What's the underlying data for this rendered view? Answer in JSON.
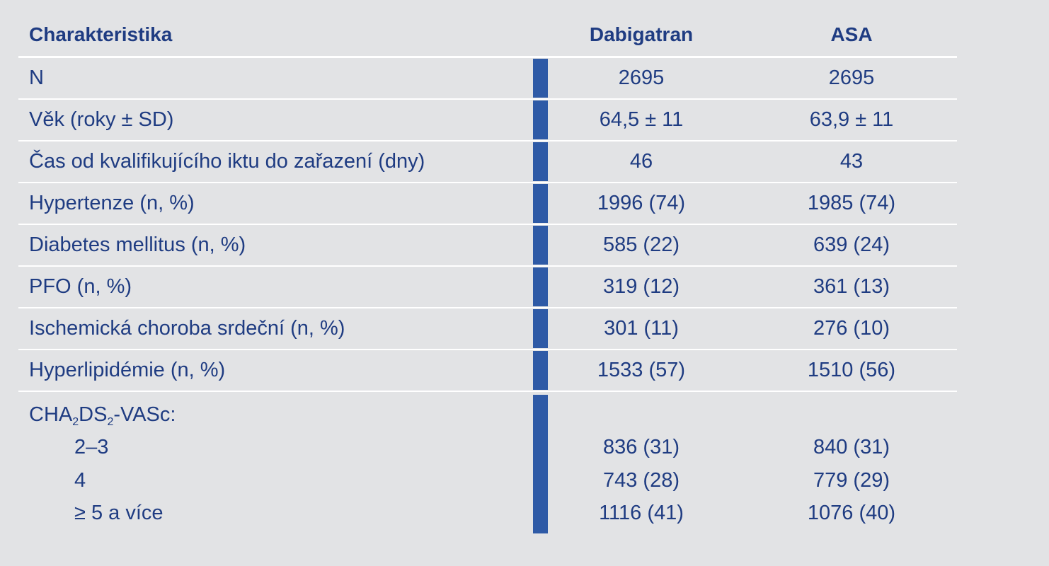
{
  "table": {
    "headers": {
      "label": "Charakteristika",
      "dabigatran": "Dabigatran",
      "asa": "ASA"
    },
    "rows": [
      {
        "label": "N",
        "dabigatran": "2695",
        "asa": "2695"
      },
      {
        "label": "Věk (roky ± SD)",
        "dabigatran": "64,5 ± 11",
        "asa": "63,9 ± 11"
      },
      {
        "label": "Čas od kvalifikujícího iktu do zařazení (dny)",
        "dabigatran": "46",
        "asa": "43"
      },
      {
        "label": "Hypertenze (n, %)",
        "dabigatran": "1996 (74)",
        "asa": "1985 (74)"
      },
      {
        "label": "Diabetes mellitus (n, %)",
        "dabigatran": "585 (22)",
        "asa": "639 (24)"
      },
      {
        "label": "PFO (n, %)",
        "dabigatran": "319 (12)",
        "asa": "361 (13)"
      },
      {
        "label": "Ischemická choroba srdeční (n, %)",
        "dabigatran": "301 (11)",
        "asa": "276 (10)"
      },
      {
        "label": "Hyperlipidémie (n, %)",
        "dabigatran": "1533 (57)",
        "asa": "1510 (56)"
      }
    ],
    "score": {
      "label_part1": "CHA",
      "sub1": "2",
      "label_part2": "DS",
      "sub2": "2",
      "label_part3": "-VASc:",
      "subrows": [
        {
          "label": "2–3",
          "dabigatran": "836 (31)",
          "asa": "840 (31)"
        },
        {
          "label": "4",
          "dabigatran": "743 (28)",
          "asa": "779 (29)"
        },
        {
          "label": "≥ 5 a více",
          "dabigatran": "1116 (41)",
          "asa": "1076 (40)"
        }
      ]
    }
  }
}
